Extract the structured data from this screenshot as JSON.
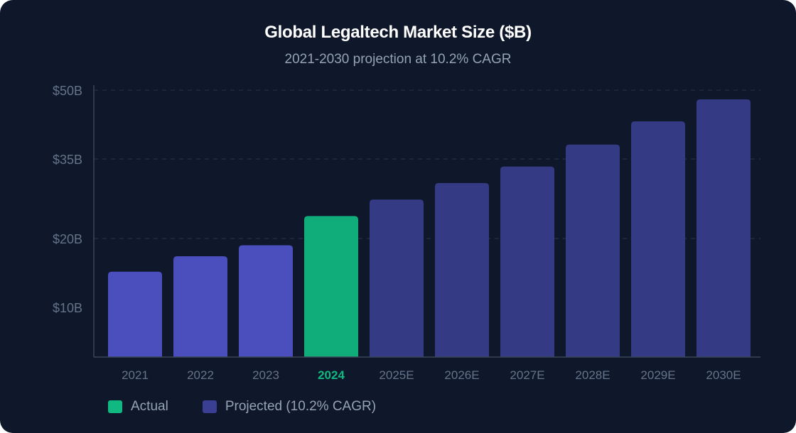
{
  "title": "Global Legaltech Market Size ($B)",
  "subtitle": "2021-2030 projection at 10.2% CAGR",
  "colors": {
    "background": "#0f172a",
    "actual_history": "#4a4fbd",
    "actual_current": "#10ac7a",
    "projected": "#353a85",
    "gridline": "#2b3548",
    "axis": "#3a4658",
    "tick_text": "#64748b",
    "highlight_text": "#10b981"
  },
  "legend": [
    {
      "label": "Actual",
      "color": "#10b981"
    },
    {
      "label": "Projected (10.2% CAGR)",
      "color": "#3b3f93"
    }
  ],
  "chart_data": {
    "type": "bar",
    "title": "Global Legaltech Market Size ($B)",
    "subtitle": "2021-2030 projection at 10.2% CAGR",
    "categories": [
      "2021",
      "2022",
      "2023",
      "2024",
      "2025E",
      "2026E",
      "2027E",
      "2028E",
      "2029E",
      "2030E"
    ],
    "values": [
      15.5,
      18.3,
      20.3,
      25.6,
      28.6,
      31.6,
      34.6,
      38.6,
      42.8,
      46.8
    ],
    "bar_kind": [
      "actual",
      "actual",
      "actual",
      "current",
      "projected",
      "projected",
      "projected",
      "projected",
      "projected",
      "projected"
    ],
    "highlight_category": "2024",
    "yticks": [
      {
        "value": 10,
        "label": "$10B"
      },
      {
        "value": 20,
        "label": "$20B"
      },
      {
        "value": 35,
        "label": "$35B"
      },
      {
        "value": 50,
        "label": "$50B"
      }
    ],
    "xlabel": "",
    "ylabel": "",
    "grid": true,
    "legend_position": "bottom-left"
  }
}
